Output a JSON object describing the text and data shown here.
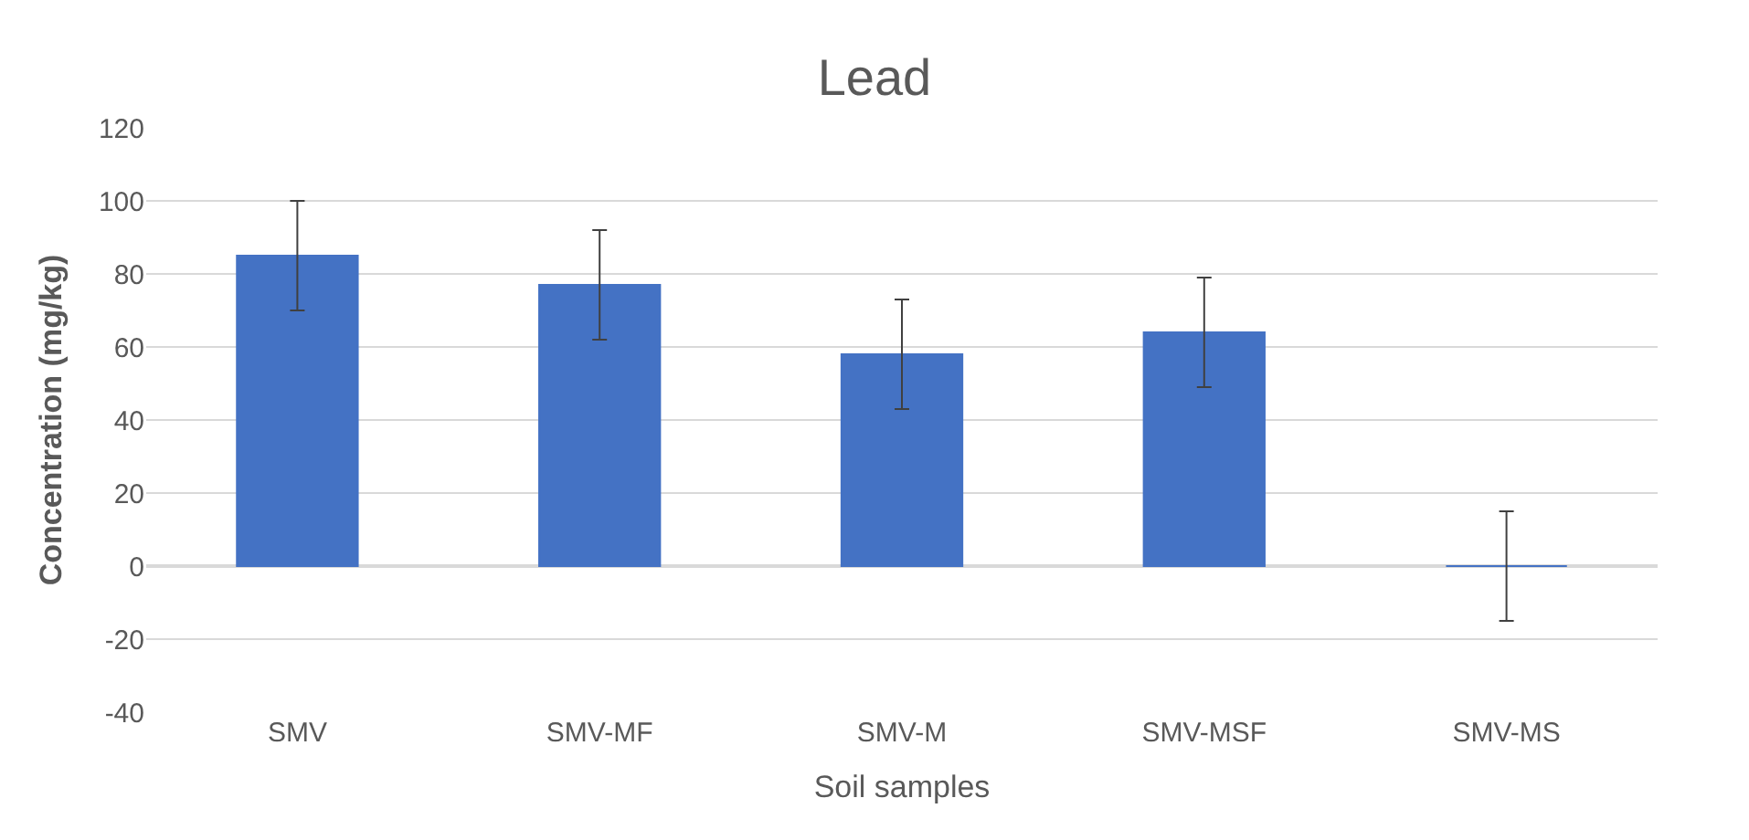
{
  "chart_data": {
    "type": "bar",
    "title": "Lead",
    "xlabel": "Soil samples",
    "ylabel": "Concentration (mg/kg)",
    "categories": [
      "SMV",
      "SMV-MF",
      "SMV-M",
      "SMV-MSF",
      "SMV-MS"
    ],
    "series": [
      {
        "color": "#4472c4",
        "values": [
          85,
          77,
          58,
          64,
          0
        ],
        "errors": [
          15,
          15,
          15,
          15,
          15
        ]
      }
    ],
    "ylim": [
      -40,
      120
    ],
    "yticks": [
      -40,
      -20,
      0,
      20,
      40,
      60,
      80,
      100,
      120
    ],
    "grid": "y"
  }
}
